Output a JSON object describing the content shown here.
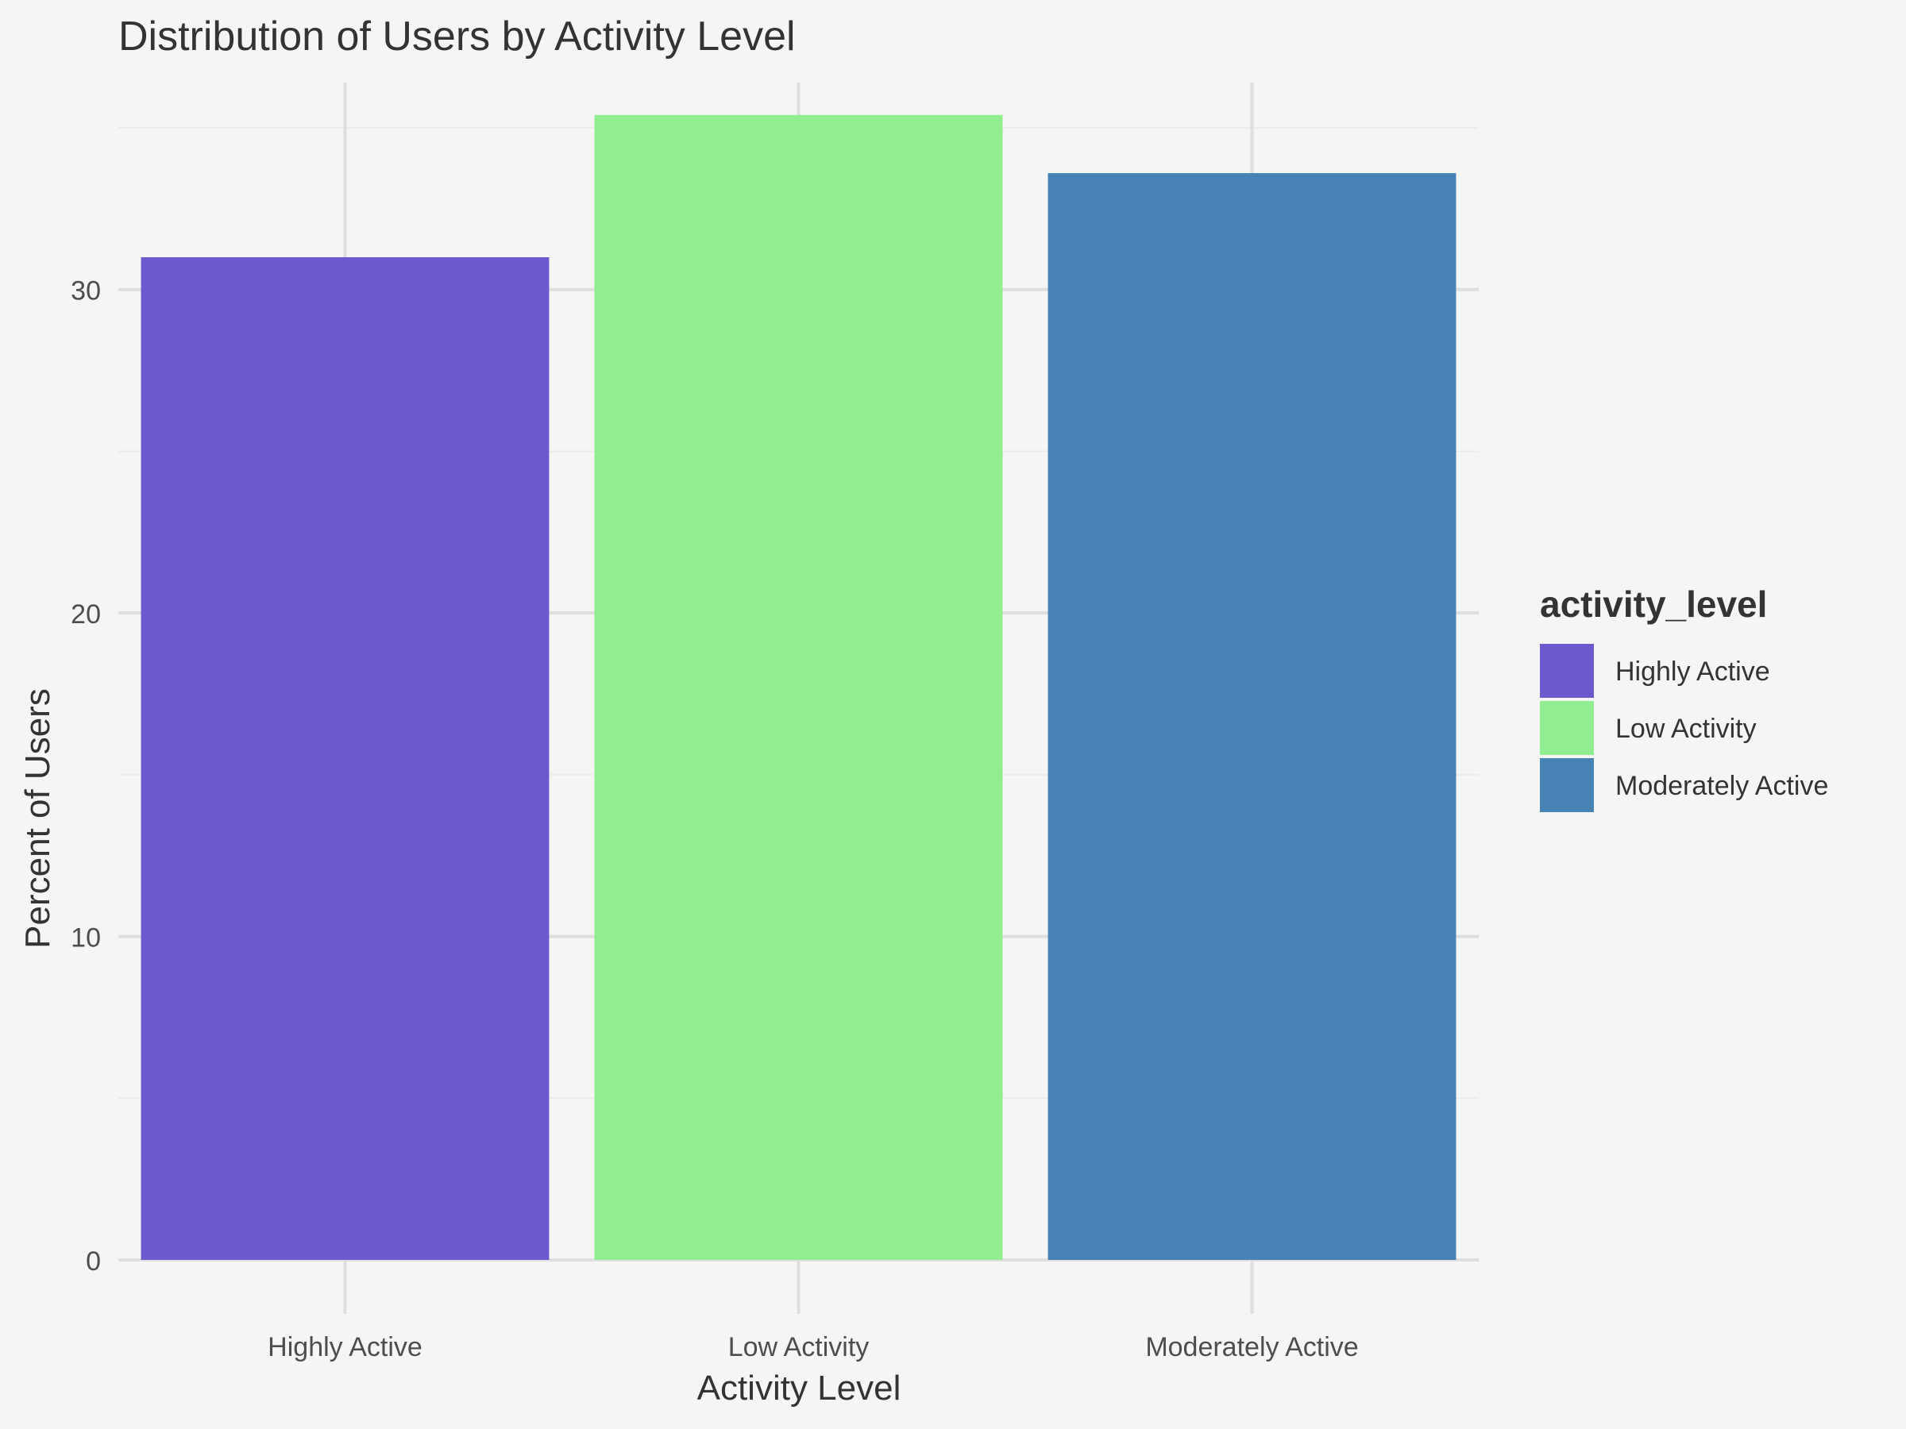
{
  "chart_data": {
    "type": "bar",
    "title": "Distribution of Users by Activity Level",
    "xlabel": "Activity Level",
    "ylabel": "Percent of Users",
    "categories": [
      "Highly Active",
      "Low Activity",
      "Moderately Active"
    ],
    "values": [
      31.0,
      35.4,
      33.6
    ],
    "colors": [
      "#6a5acd",
      "#90ee90",
      "#4682b4"
    ],
    "ylim": [
      0,
      36.4
    ],
    "yticks": [
      0,
      10,
      20,
      30
    ],
    "ytick_labels": [
      "0",
      "10",
      "20",
      "30"
    ],
    "grid": true,
    "legend": {
      "title": "activity_level",
      "placement": "right",
      "entries": [
        "Highly Active",
        "Low Activity",
        "Moderately Active"
      ]
    },
    "background": "#f5f5f5",
    "grid_major_color": "#dedede",
    "grid_minor_color": "#ebebeb"
  }
}
